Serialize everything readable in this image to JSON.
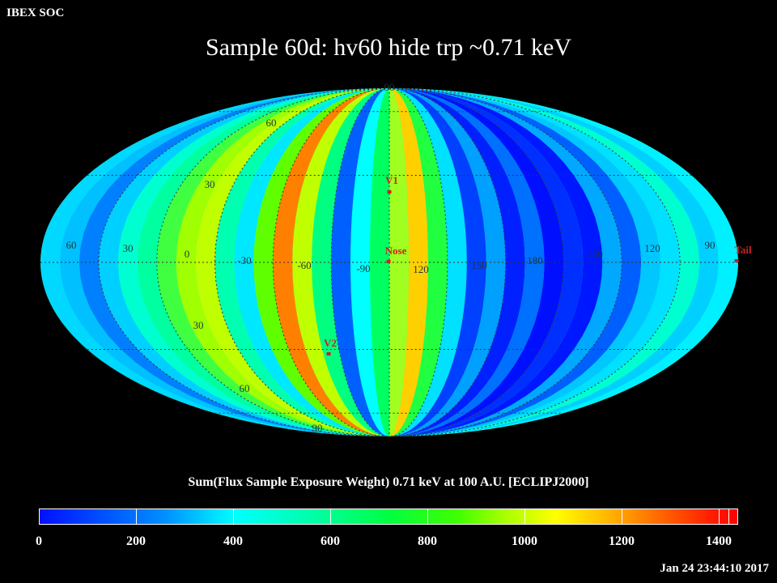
{
  "header": {
    "org": "IBEX SOC",
    "title": "Sample 60d: hv60 hide trp ~0.71 keV"
  },
  "map": {
    "lon_labels": [
      "60",
      "30",
      "0",
      "330",
      "300",
      "270",
      "240",
      "210",
      "180",
      "150",
      "120",
      "90"
    ],
    "lon_labels_display": [
      "60",
      "30",
      "0",
      "-30",
      "-60",
      "-90",
      "120",
      "150",
      "180",
      "150",
      "120",
      "90"
    ],
    "lat_labels": [
      "90",
      "60",
      "30",
      "-30",
      "-60",
      "-90"
    ],
    "lat_labels_display": [
      "90",
      "60",
      "30",
      "30",
      "60",
      "90"
    ],
    "markers": [
      {
        "name": "V1",
        "label": "V1"
      },
      {
        "name": "Nose",
        "label": "Nose"
      },
      {
        "name": "V2",
        "label": "V2"
      },
      {
        "name": "Tail",
        "label": "Tail"
      }
    ],
    "colors": {
      "marker": "#cc2222",
      "grid": "#333333"
    }
  },
  "legend": {
    "title": "Sum(Flux Sample Exposure Weight)  0.71 keV at 100 A.U. [ECLIPJ2000]",
    "ticks": [
      "0",
      "200",
      "400",
      "600",
      "800",
      "1000",
      "1200",
      "1400"
    ]
  },
  "footer": {
    "timestamp": "Jan 24 23:44:10 2017"
  }
}
